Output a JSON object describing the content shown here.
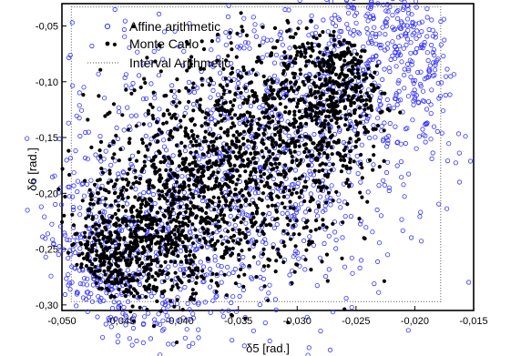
{
  "chart_data": {
    "type": "scatter",
    "title": "",
    "xlabel": "δ5 [rad.]",
    "ylabel": "δ6 [rad.]",
    "xlim": [
      -0.05,
      -0.015
    ],
    "ylim": [
      -0.305,
      -0.03
    ],
    "xticks": [
      -0.05,
      -0.045,
      -0.04,
      -0.035,
      -0.03,
      -0.025,
      -0.02,
      -0.015
    ],
    "xtick_labels": [
      "-0,050",
      "-0,045",
      "-0,040",
      "-0,035",
      "-0,030",
      "-0,025",
      "-0,020",
      "-0,015"
    ],
    "yticks": [
      -0.05,
      -0.1,
      -0.15,
      -0.2,
      -0.25,
      -0.3
    ],
    "ytick_labels": [
      "-0,05",
      "-0,10",
      "-0,15",
      "-0,20",
      "-0,25",
      "-0,30"
    ],
    "grid": false,
    "legend_position": "top-left",
    "series": [
      {
        "name": "Affine arithmetic",
        "marker": "open-circle",
        "color": "#3333ff",
        "line_start": [
          -0.0497,
          -0.3
        ],
        "line_end": [
          -0.018,
          -0.034
        ],
        "band_half_width": 0.0095,
        "num_points": 1800
      },
      {
        "name": "Monte Carlo",
        "marker": "filled-circle",
        "color": "#000000",
        "line_start": [
          -0.0478,
          -0.279
        ],
        "line_end": [
          -0.0238,
          -0.077
        ],
        "band_half_width": 0.0065,
        "num_points": 2400
      },
      {
        "name": "Interval Arithmetic",
        "marker": "dotted-rectangle",
        "color": "#555555",
        "xmin": -0.0492,
        "xmax": -0.0178,
        "ymin": -0.297,
        "ymax": -0.033
      }
    ]
  }
}
